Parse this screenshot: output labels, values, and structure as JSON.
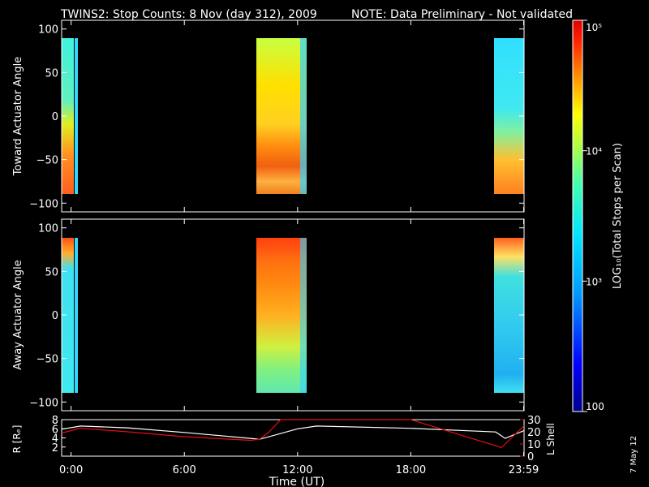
{
  "header": {
    "title": "TWINS2: Stop Counts:  8 Nov (day 312), 2009",
    "note": "NOTE: Data Preliminary - Not validated",
    "note_color": "#ff1e1e"
  },
  "side_stamp": "7 May 12",
  "colors": {
    "background": "#000000",
    "axes": "#ffffff",
    "r_line": "#ffffff",
    "lshell_line": "#e01010"
  },
  "chart_data": [
    {
      "type": "heatmap",
      "title": "",
      "xlabel": "",
      "ylabel": "Toward Actuator Angle",
      "xlim_hours": [
        -0.5,
        24.0
      ],
      "ylim": [
        -110,
        110
      ],
      "yticks": [
        "100",
        "50",
        "0",
        "−50",
        "−100"
      ],
      "ytick_values": [
        100,
        50,
        0,
        -50,
        -100
      ],
      "intervals_hours": [
        {
          "start": "0:00",
          "end": "0:10",
          "range_deg": [
            -88,
            90
          ]
        },
        {
          "start": "9:55",
          "end": "12:35",
          "range_deg": [
            -88,
            90
          ]
        },
        {
          "start": "22:30",
          "end": "23:59",
          "range_deg": [
            -88,
            90
          ]
        }
      ],
      "colorscale": "log10 counts, 100 to 1e5"
    },
    {
      "type": "heatmap",
      "title": "",
      "xlabel": "",
      "ylabel": "Away Actuator Angle",
      "xlim_hours": [
        -0.5,
        24.0
      ],
      "ylim": [
        -110,
        110
      ],
      "yticks": [
        "100",
        "50",
        "0",
        "−50",
        "−100"
      ],
      "ytick_values": [
        100,
        50,
        0,
        -50,
        -100
      ],
      "intervals_hours": [
        {
          "start": "0:00",
          "end": "0:10",
          "range_deg": [
            -88,
            90
          ]
        },
        {
          "start": "9:55",
          "end": "12:35",
          "range_deg": [
            -88,
            90
          ]
        },
        {
          "start": "22:30",
          "end": "23:59",
          "range_deg": [
            -88,
            90
          ]
        }
      ],
      "colorscale": "log10 counts, 100 to 1e5"
    },
    {
      "type": "line",
      "title": "",
      "xlabel": "Time (UT)",
      "xticks": [
        "0:00",
        "6:00",
        "12:00",
        "18:00",
        "23:59"
      ],
      "xtick_hours": [
        0,
        6,
        12,
        18,
        23.98
      ],
      "ylabel_left": "R [Rₑ]",
      "ylim_left": [
        0,
        8
      ],
      "yticks_left": [
        "8",
        "6",
        "4",
        "2"
      ],
      "ylabel_right": "L Shell",
      "ylim_right": [
        0,
        30
      ],
      "yticks_right": [
        "30",
        "20",
        "10",
        "0"
      ],
      "series": [
        {
          "axis": "left",
          "color": "#ffffff",
          "x_hours": [
            -0.5,
            0.5,
            3,
            6,
            9.5,
            10,
            12,
            13,
            18,
            22.5,
            23,
            24
          ],
          "y": [
            5.9,
            6.6,
            6.2,
            5.2,
            3.9,
            3.7,
            6.0,
            6.6,
            6.1,
            5.3,
            3.9,
            5.6
          ]
        },
        {
          "axis": "right",
          "color": "#e01010",
          "x_hours": [
            -0.5,
            0.5,
            3,
            6,
            9.5,
            10,
            10.5,
            11.1,
            18,
            22.8,
            24
          ],
          "y": [
            19,
            23,
            20,
            16,
            13,
            14,
            20,
            30,
            30,
            7,
            25
          ]
        }
      ]
    }
  ],
  "colorbar": {
    "label": "LOG₁₀(Total Stops per Scan)",
    "ticks": [
      "10⁵",
      "10⁴",
      "10³",
      "100"
    ],
    "tick_values": [
      100000,
      10000,
      1000,
      100
    ],
    "range": [
      100,
      100000
    ]
  }
}
